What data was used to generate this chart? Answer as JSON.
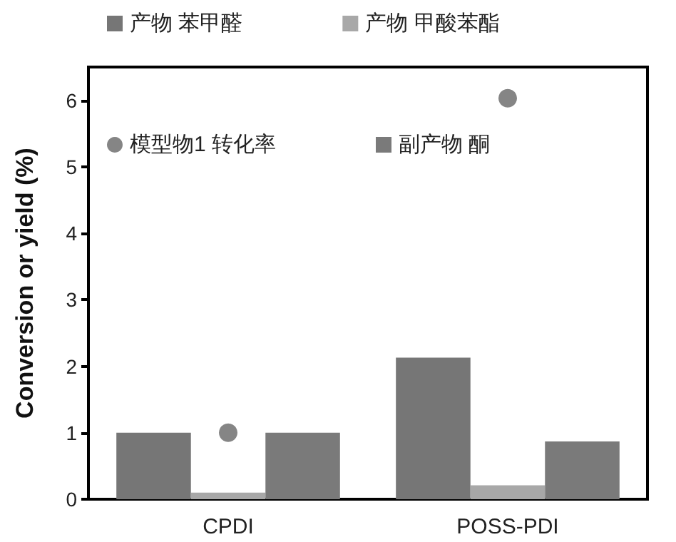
{
  "chart_data": {
    "type": "bar",
    "ylabel": "Conversion or yield (%)",
    "categories": [
      "CPDI",
      "POSS-PDI"
    ],
    "series": [
      {
        "name": "产物 苯甲醛",
        "color": "#767676",
        "values": [
          1.0,
          2.13
        ]
      },
      {
        "name": "产物 甲酸苯酯",
        "color": "#a8a8a8",
        "values": [
          0.1,
          0.21
        ]
      },
      {
        "name": "模型物1 转化率",
        "type": "scatter",
        "color": "#666666",
        "x": [
          "CPDI",
          "POSS-PDI"
        ],
        "values": [
          1.0,
          6.03
        ]
      },
      {
        "name": "副产物 酮",
        "color": "#7a7a7a",
        "values": [
          1.0,
          0.87
        ]
      }
    ],
    "ylim": [
      0,
      6.5
    ],
    "yticks": [
      0,
      1,
      2,
      3,
      4,
      5,
      6
    ],
    "grid": false,
    "legend": "top",
    "marker": "circle"
  }
}
